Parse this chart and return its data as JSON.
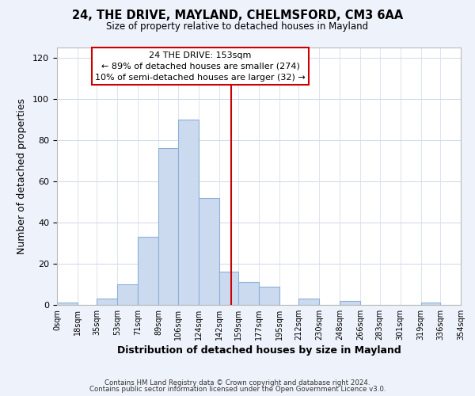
{
  "title": "24, THE DRIVE, MAYLAND, CHELMSFORD, CM3 6AA",
  "subtitle": "Size of property relative to detached houses in Mayland",
  "xlabel": "Distribution of detached houses by size in Mayland",
  "ylabel": "Number of detached properties",
  "bar_color": "#ccdaf0",
  "bar_edge_color": "#8ab0d8",
  "vline_color": "#cc0000",
  "vline_x": 153,
  "bin_edges": [
    0,
    18,
    35,
    53,
    71,
    89,
    106,
    124,
    142,
    159,
    177,
    195,
    212,
    230,
    248,
    266,
    283,
    301,
    319,
    336,
    354
  ],
  "counts": [
    1,
    0,
    3,
    10,
    33,
    76,
    90,
    52,
    16,
    11,
    9,
    0,
    3,
    0,
    2,
    0,
    0,
    0,
    1,
    0
  ],
  "tick_labels": [
    "0sqm",
    "18sqm",
    "35sqm",
    "53sqm",
    "71sqm",
    "89sqm",
    "106sqm",
    "124sqm",
    "142sqm",
    "159sqm",
    "177sqm",
    "195sqm",
    "212sqm",
    "230sqm",
    "248sqm",
    "266sqm",
    "283sqm",
    "301sqm",
    "319sqm",
    "336sqm",
    "354sqm"
  ],
  "ylim": [
    0,
    125
  ],
  "yticks": [
    0,
    20,
    40,
    60,
    80,
    100,
    120
  ],
  "annotation_title": "24 THE DRIVE: 153sqm",
  "annotation_line1": "← 89% of detached houses are smaller (274)",
  "annotation_line2": "10% of semi-detached houses are larger (32) →",
  "footer1": "Contains HM Land Registry data © Crown copyright and database right 2024.",
  "footer2": "Contains public sector information licensed under the Open Government Licence v3.0.",
  "bg_color": "#eef2fb",
  "plot_bg_color": "#ffffff",
  "grid_color": "#d0d8e8"
}
